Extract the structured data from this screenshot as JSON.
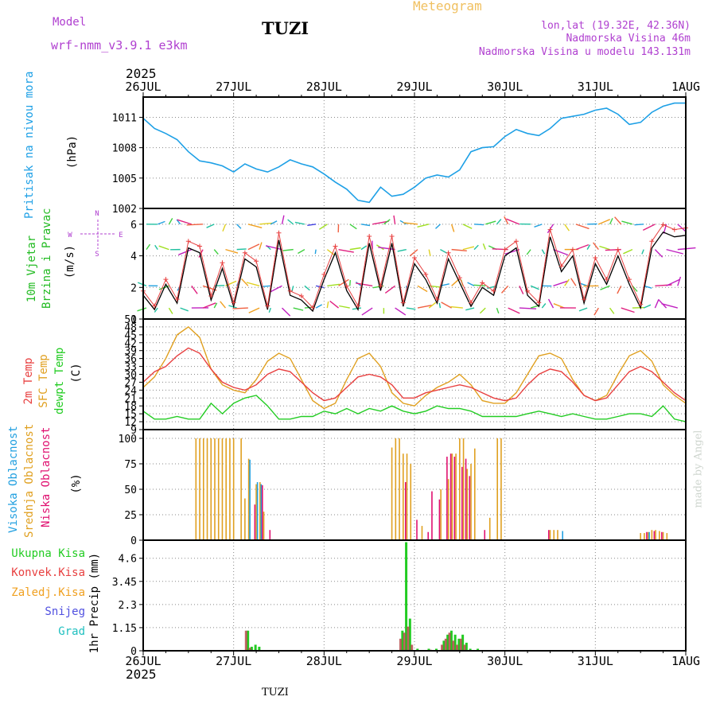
{
  "header": {
    "model_label": "Model",
    "model_name": "wrf-nmm_v3.9.1 e3km",
    "title": "TUZI",
    "meteogram_label": "Meteogram",
    "lonlat": "lon,lat (19.32E, 42.36N)",
    "elevation": "Nadmorska Visina 46m",
    "model_elevation": "Nadmorska Visina u modelu 143.131m",
    "year_top": "2025",
    "year_bottom": "2025",
    "footer_station": "TUZI",
    "watermark": "made by Angel"
  },
  "colors": {
    "pressure": "#1ea0e6",
    "wind_label": "#22bb22",
    "temp2m": "#e84040",
    "sfc": "#e0a020",
    "dew": "#22cc22",
    "high_cloud": "#22a0e0",
    "mid_cloud": "#e0a020",
    "low_cloud": "#e01070",
    "purple": "#b040d0",
    "orange": "#f0a020"
  },
  "panels": {
    "pressure": {
      "label_main": "Pritisak na nivou mora",
      "unit": "(hPa)"
    },
    "wind": {
      "label_1": "10m Vjetar",
      "label_2": "Brzina i Pravac",
      "unit": "(m/s)",
      "compass_w": "W",
      "compass_e": "E",
      "compass_n": "N",
      "compass_s": "S"
    },
    "temp": {
      "label_1": "2m Temp",
      "label_2": "SFC Temp",
      "label_3": "dewpt Temp",
      "unit": "(C)"
    },
    "cloud": {
      "label_1": "Visoka Oblacnost",
      "label_2": "Srednja Oblacnost",
      "label_3": "Niska Oblacnost",
      "unit": "(%)"
    },
    "precip": {
      "legend": [
        "Ukupna Kisa",
        "Konvek.Kisa",
        "Zaledj.Kisa",
        "Snijeg",
        "Grad"
      ],
      "unit": "1hr Precip (mm)"
    }
  },
  "chart_data": {
    "type": "line",
    "x_days": [
      "26JUL",
      "27JUL",
      "28JUL",
      "29JUL",
      "30JUL",
      "31JUL",
      "1AUG"
    ],
    "x_range_hours": [
      0,
      144
    ],
    "pressure": {
      "ylim": [
        1002,
        1013
      ],
      "ticks": [
        "1002",
        "1005",
        "1008",
        "1011"
      ],
      "tick_values": [
        1002,
        1005,
        1008,
        1011
      ],
      "hours": [
        0,
        3,
        6,
        9,
        12,
        15,
        18,
        21,
        24,
        27,
        30,
        33,
        36,
        39,
        42,
        45,
        48,
        51,
        54,
        57,
        60,
        63,
        66,
        69,
        72,
        75,
        78,
        81,
        84,
        87,
        90,
        93,
        96,
        99,
        102,
        105,
        108,
        111,
        114,
        117,
        120,
        123,
        126,
        129,
        132,
        135,
        138,
        141,
        144
      ],
      "values": [
        1010.9,
        1009.9,
        1009.4,
        1008.8,
        1007.6,
        1006.7,
        1006.5,
        1006.2,
        1005.6,
        1006.4,
        1005.9,
        1005.6,
        1006.1,
        1006.8,
        1006.4,
        1006.1,
        1005.4,
        1004.6,
        1003.9,
        1002.8,
        1002.6,
        1004.1,
        1003.2,
        1003.4,
        1004.1,
        1005.0,
        1005.3,
        1005.1,
        1005.8,
        1007.6,
        1008.0,
        1008.1,
        1009.1,
        1009.8,
        1009.4,
        1009.2,
        1009.9,
        1010.9,
        1011.1,
        1011.3,
        1011.7,
        1011.9,
        1011.3,
        1010.3,
        1010.5,
        1011.5,
        1012.1,
        1012.4,
        1012.4
      ]
    },
    "wind": {
      "ylim": [
        0,
        7
      ],
      "ticks": [
        "0",
        "2",
        "4",
        "6"
      ],
      "tick_values": [
        0,
        2,
        4,
        6
      ],
      "hours": [
        0,
        3,
        6,
        9,
        12,
        15,
        18,
        21,
        24,
        27,
        30,
        33,
        36,
        39,
        42,
        45,
        48,
        51,
        54,
        57,
        60,
        63,
        66,
        69,
        72,
        75,
        78,
        81,
        84,
        87,
        90,
        93,
        96,
        99,
        102,
        105,
        108,
        111,
        114,
        117,
        120,
        123,
        126,
        129,
        132,
        135,
        138,
        141,
        144
      ],
      "speed": [
        1.5,
        0.6,
        2.2,
        1.0,
        4.5,
        4.2,
        1.2,
        3.2,
        0.8,
        3.8,
        3.3,
        0.6,
        5.0,
        1.5,
        1.2,
        0.5,
        2.5,
        4.2,
        1.8,
        0.6,
        4.8,
        1.8,
        4.8,
        0.8,
        3.5,
        2.5,
        1.0,
        3.8,
        2.3,
        0.8,
        2.0,
        1.5,
        4.0,
        4.5,
        1.5,
        0.8,
        5.2,
        3.0,
        4.0,
        1.0,
        3.5,
        2.2,
        4.0,
        2.2,
        0.7,
        4.5,
        5.5,
        5.2,
        5.3
      ]
    },
    "temperature": {
      "ylim": [
        9,
        51
      ],
      "ticks": [
        "9",
        "12",
        "15",
        "18",
        "21",
        "24",
        "27",
        "30",
        "33",
        "36",
        "39",
        "42",
        "45",
        "48",
        "51"
      ],
      "tick_values": [
        9,
        12,
        15,
        18,
        21,
        24,
        27,
        30,
        33,
        36,
        39,
        42,
        45,
        48,
        51
      ],
      "hours": [
        0,
        3,
        6,
        9,
        12,
        15,
        18,
        21,
        24,
        27,
        30,
        33,
        36,
        39,
        42,
        45,
        48,
        51,
        54,
        57,
        60,
        63,
        66,
        69,
        72,
        75,
        78,
        81,
        84,
        87,
        90,
        93,
        96,
        99,
        102,
        105,
        108,
        111,
        114,
        117,
        120,
        123,
        126,
        129,
        132,
        135,
        138,
        141,
        144
      ],
      "t2m": [
        27,
        31,
        33,
        37,
        40,
        38,
        32,
        27,
        25,
        24,
        26,
        30,
        32,
        31,
        27,
        23,
        20,
        21,
        25,
        29,
        30,
        29,
        26,
        21,
        21,
        23,
        24,
        25,
        26,
        25,
        23,
        21,
        20,
        21,
        26,
        30,
        32,
        31,
        27,
        22,
        20,
        21,
        26,
        31,
        33,
        31,
        27,
        23,
        20
      ],
      "sfc": [
        25,
        29,
        36,
        45,
        48,
        44,
        32,
        26,
        24,
        23,
        28,
        35,
        38,
        36,
        28,
        20,
        17,
        19,
        28,
        36,
        38,
        33,
        23,
        19,
        18,
        22,
        25,
        27,
        30,
        26,
        20,
        19,
        19,
        23,
        30,
        37,
        38,
        36,
        28,
        22,
        20,
        22,
        30,
        37,
        39,
        35,
        26,
        22,
        19
      ],
      "dew": [
        16,
        13,
        13,
        14,
        13,
        13,
        19,
        15,
        19,
        21,
        22,
        18,
        13,
        13,
        14,
        14,
        16,
        15,
        17,
        15,
        17,
        16,
        18,
        16,
        15,
        16,
        18,
        17,
        17,
        16,
        14,
        14,
        14,
        14,
        15,
        16,
        15,
        14,
        15,
        14,
        13,
        13,
        14,
        15,
        15,
        14,
        18,
        13,
        12
      ]
    },
    "cloud": {
      "ylim": [
        0,
        100
      ],
      "ticks": [
        "0",
        "25",
        "50",
        "75",
        "100"
      ],
      "tick_values": [
        0,
        25,
        50,
        75,
        100
      ],
      "mid": [
        [
          14,
          100
        ],
        [
          15,
          100
        ],
        [
          16,
          100
        ],
        [
          17,
          100
        ],
        [
          18,
          100
        ],
        [
          19,
          100
        ],
        [
          20,
          100
        ],
        [
          21,
          100
        ],
        [
          22,
          100
        ],
        [
          23,
          100
        ],
        [
          24,
          100
        ],
        [
          26,
          100
        ],
        [
          27,
          41
        ],
        [
          28,
          80
        ],
        [
          30,
          55
        ],
        [
          31,
          57
        ],
        [
          32,
          28
        ],
        [
          66,
          91
        ],
        [
          67,
          100
        ],
        [
          68,
          100
        ],
        [
          69,
          85
        ],
        [
          70,
          85
        ],
        [
          71,
          75
        ],
        [
          74,
          14
        ],
        [
          79,
          50
        ],
        [
          81,
          60
        ],
        [
          82,
          85
        ],
        [
          83,
          85
        ],
        [
          84,
          100
        ],
        [
          85,
          100
        ],
        [
          86,
          70
        ],
        [
          87,
          75
        ],
        [
          88,
          90
        ],
        [
          92,
          22
        ],
        [
          94,
          100
        ],
        [
          95,
          100
        ],
        [
          108,
          10
        ],
        [
          109,
          10
        ],
        [
          110,
          10
        ],
        [
          132,
          7
        ],
        [
          133,
          7
        ],
        [
          134,
          8
        ],
        [
          135,
          10
        ],
        [
          136,
          10
        ],
        [
          137,
          9
        ],
        [
          138,
          8
        ],
        [
          139,
          7
        ]
      ],
      "high": [
        [
          28,
          79
        ],
        [
          30,
          57
        ],
        [
          31,
          55
        ],
        [
          111,
          9
        ],
        [
          134,
          8
        ]
      ],
      "low": [
        [
          29,
          35
        ],
        [
          31,
          54
        ],
        [
          33,
          10
        ],
        [
          69,
          57
        ],
        [
          72,
          20
        ],
        [
          75,
          8
        ],
        [
          76,
          48
        ],
        [
          78,
          40
        ],
        [
          80,
          82
        ],
        [
          81,
          85
        ],
        [
          82,
          82
        ],
        [
          84,
          72
        ],
        [
          85,
          80
        ],
        [
          86,
          63
        ],
        [
          90,
          10
        ],
        [
          107,
          10
        ],
        [
          133,
          8
        ],
        [
          135,
          9
        ],
        [
          137,
          8
        ]
      ]
    },
    "precip": {
      "ylim": [
        0,
        5.5
      ],
      "ticks": [
        "0",
        "1.15",
        "2.3",
        "3.45",
        "4.6"
      ],
      "tick_values": [
        0,
        1.15,
        2.3,
        3.45,
        4.6
      ],
      "total": [
        [
          27.8,
          1.0
        ],
        [
          28.8,
          0.2
        ],
        [
          29.8,
          0.3
        ],
        [
          30.8,
          0.2
        ],
        [
          68.8,
          1.0
        ],
        [
          69.8,
          5.4
        ],
        [
          70.8,
          1.6
        ],
        [
          72.8,
          0.1
        ],
        [
          75.8,
          0.1
        ],
        [
          77.8,
          0.1
        ],
        [
          79.8,
          0.5
        ],
        [
          80.8,
          0.8
        ],
        [
          81.8,
          1.0
        ],
        [
          82.8,
          0.8
        ],
        [
          83.8,
          0.6
        ],
        [
          84.8,
          0.8
        ],
        [
          85.8,
          0.4
        ],
        [
          86.8,
          0.1
        ],
        [
          88.8,
          0.1
        ]
      ],
      "conv": [
        [
          27.3,
          1.0
        ],
        [
          28.3,
          0.15
        ],
        [
          68.3,
          0.6
        ],
        [
          69.3,
          0.9
        ],
        [
          70.3,
          1.2
        ],
        [
          71.3,
          0.3
        ],
        [
          76.3,
          0.05
        ],
        [
          79.3,
          0.3
        ],
        [
          80.3,
          0.6
        ],
        [
          81.3,
          0.9
        ],
        [
          82.3,
          0.5
        ],
        [
          83.3,
          0.3
        ],
        [
          84.3,
          0.6
        ],
        [
          85.3,
          0.3
        ]
      ]
    }
  }
}
